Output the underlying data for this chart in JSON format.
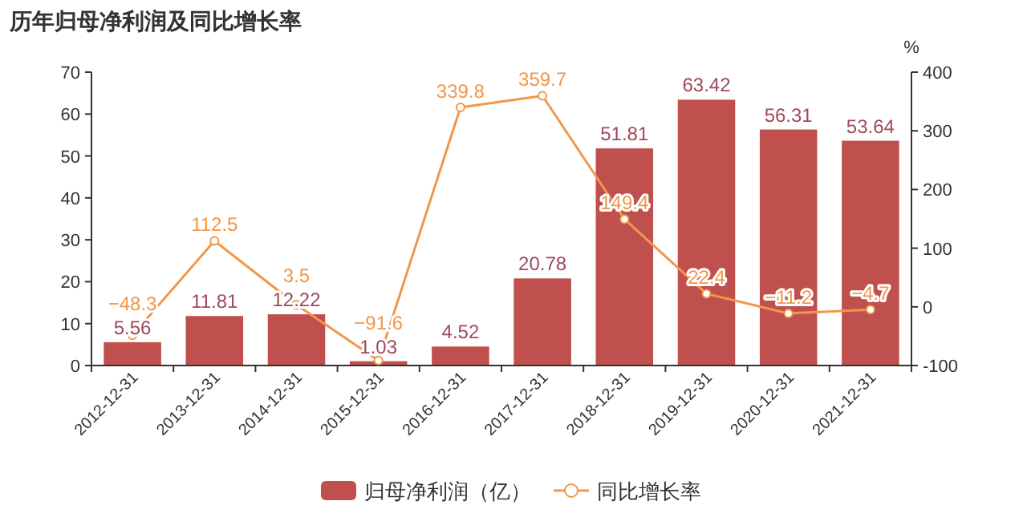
{
  "chart_data": {
    "type": "bar",
    "title": "历年归母净利润及同比增长率",
    "y2label": "%",
    "categories": [
      "2012-12-31",
      "2013-12-31",
      "2014-12-31",
      "2015-12-31",
      "2016-12-31",
      "2017-12-31",
      "2018-12-31",
      "2019-12-31",
      "2020-12-31",
      "2021-12-31"
    ],
    "series": [
      {
        "name": "归母净利润（亿）",
        "color": "#c0504d",
        "values": [
          5.56,
          11.81,
          12.22,
          1.03,
          4.52,
          20.78,
          51.81,
          63.42,
          56.31,
          53.64
        ]
      },
      {
        "name": "同比增长率",
        "type": "line",
        "axis": "y2",
        "color": "#f0974a",
        "marker": "circle",
        "values": [
          -48.3,
          112.5,
          3.5,
          -91.6,
          339.8,
          359.7,
          149.4,
          22.4,
          -11.2,
          -4.7
        ]
      }
    ],
    "ylim": [
      0,
      70
    ],
    "yticks": [
      0,
      10,
      20,
      30,
      40,
      50,
      60,
      70
    ],
    "y2lim": [
      -100,
      400
    ],
    "y2ticks": [
      -100,
      0,
      100,
      200,
      300,
      400
    ],
    "data_labels": true,
    "legend": "bottom",
    "grid": false
  }
}
